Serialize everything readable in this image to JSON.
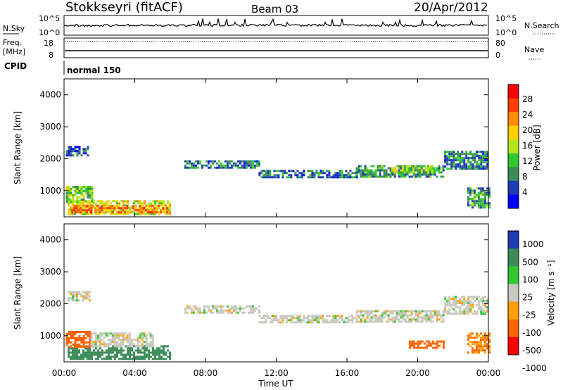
{
  "header": {
    "title": "Stokkseyri (fitACF)",
    "beam": "Beam 03",
    "date": "20/Apr/2012"
  },
  "strip_labels": {
    "nsky": "N.Sky",
    "nsearch": "N.Search",
    "freq_line1": "Freq.",
    "freq_line2": "[MHz]",
    "nave": "Nave",
    "cpid": "CPID",
    "cpid_value": "normal 150",
    "nsky_ticks": [
      "10^5",
      "10^0"
    ],
    "nsearch_ticks": [
      "10^5",
      "10^0"
    ],
    "freq_ticks": [
      "18",
      "8"
    ],
    "nave_ticks": [
      "80",
      "0"
    ]
  },
  "colorbars": {
    "power": {
      "label": "Power [dB]",
      "ticks": [
        "28",
        "24",
        "20",
        "16",
        "12",
        "8",
        "4"
      ],
      "colors": [
        "#ff0000",
        "#ff4000",
        "#ff8c00",
        "#ffd000",
        "#b4e61e",
        "#32c832",
        "#3c8c5a",
        "#1e3cb4",
        "#0000ff"
      ]
    },
    "velocity": {
      "label": "Velocity [m s⁻¹]",
      "ticks": [
        "1000",
        "500",
        "100",
        "25",
        "-25",
        "-100",
        "-500",
        "-1000"
      ],
      "colors": [
        "#1e3cb4",
        "#3c8c5a",
        "#32c832",
        "#c8c8be",
        "#ffa000",
        "#ff6400",
        "#ff0000"
      ]
    }
  },
  "chart_data": [
    {
      "type": "heatmap",
      "name": "power",
      "ylabel": "Slant Range [km]",
      "xlabel": "Time UT",
      "x_ticks": [
        "00:00",
        "04:00",
        "08:00",
        "12:00",
        "16:00",
        "20:00",
        "00:00"
      ],
      "y_ticks": [
        "1000",
        "2000",
        "3000",
        "4000"
      ],
      "xlim_hours": [
        0,
        24
      ],
      "ylim_km": [
        180,
        4500
      ],
      "colorbar": "Power [dB]",
      "regions": [
        {
          "t0": 0.2,
          "t1": 6.0,
          "r0": 250,
          "r1": 700,
          "power_db": 18
        },
        {
          "t0": 0.4,
          "t1": 5.8,
          "r0": 300,
          "r1": 550,
          "power_db": 24
        },
        {
          "t0": 0.1,
          "t1": 1.6,
          "r0": 650,
          "r1": 1150,
          "power_db": 14
        },
        {
          "t0": 0.1,
          "t1": 1.4,
          "r0": 2100,
          "r1": 2400,
          "power_db": 5
        },
        {
          "t0": 6.8,
          "t1": 11.0,
          "r0": 1700,
          "r1": 1950,
          "power_db": 8
        },
        {
          "t0": 11.0,
          "t1": 16.5,
          "r0": 1400,
          "r1": 1650,
          "power_db": 7
        },
        {
          "t0": 16.5,
          "t1": 21.5,
          "r0": 1450,
          "r1": 1800,
          "power_db": 10
        },
        {
          "t0": 18.5,
          "t1": 21.0,
          "r0": 1550,
          "r1": 1800,
          "power_db": 14
        },
        {
          "t0": 21.5,
          "t1": 24.0,
          "r0": 1700,
          "r1": 2250,
          "power_db": 8
        },
        {
          "t0": 22.8,
          "t1": 24.0,
          "r0": 500,
          "r1": 1100,
          "power_db": 10
        }
      ]
    },
    {
      "type": "heatmap",
      "name": "velocity",
      "ylabel": "Slant Range [km]",
      "xlabel": "Time UT",
      "x_ticks": [
        "00:00",
        "04:00",
        "08:00",
        "12:00",
        "16:00",
        "20:00",
        "00:00"
      ],
      "y_ticks": [
        "1000",
        "2000",
        "3000",
        "4000"
      ],
      "xlim_hours": [
        0,
        24
      ],
      "ylim_km": [
        180,
        4500
      ],
      "colorbar": "Velocity [m s⁻¹]",
      "regions": [
        {
          "t0": 0.2,
          "t1": 6.0,
          "r0": 250,
          "r1": 700,
          "velocity": 200
        },
        {
          "t0": 0.1,
          "t1": 1.5,
          "r0": 650,
          "r1": 1150,
          "velocity": -300
        },
        {
          "t0": 1.5,
          "t1": 5.0,
          "r0": 650,
          "r1": 1100,
          "velocity": 0
        },
        {
          "t0": 0.2,
          "t1": 1.4,
          "r0": 2100,
          "r1": 2400,
          "velocity": 0
        },
        {
          "t0": 6.8,
          "t1": 11.0,
          "r0": 1700,
          "r1": 1950,
          "velocity": 0
        },
        {
          "t0": 11.0,
          "t1": 16.5,
          "r0": 1400,
          "r1": 1650,
          "velocity": 0
        },
        {
          "t0": 16.5,
          "t1": 21.5,
          "r0": 1450,
          "r1": 1800,
          "velocity": 0
        },
        {
          "t0": 21.5,
          "t1": 24.0,
          "r0": 1700,
          "r1": 2250,
          "velocity": 0
        },
        {
          "t0": 19.5,
          "t1": 21.5,
          "r0": 650,
          "r1": 850,
          "velocity": -200
        },
        {
          "t0": 22.8,
          "t1": 24.0,
          "r0": 500,
          "r1": 1100,
          "velocity": -100
        }
      ]
    }
  ]
}
